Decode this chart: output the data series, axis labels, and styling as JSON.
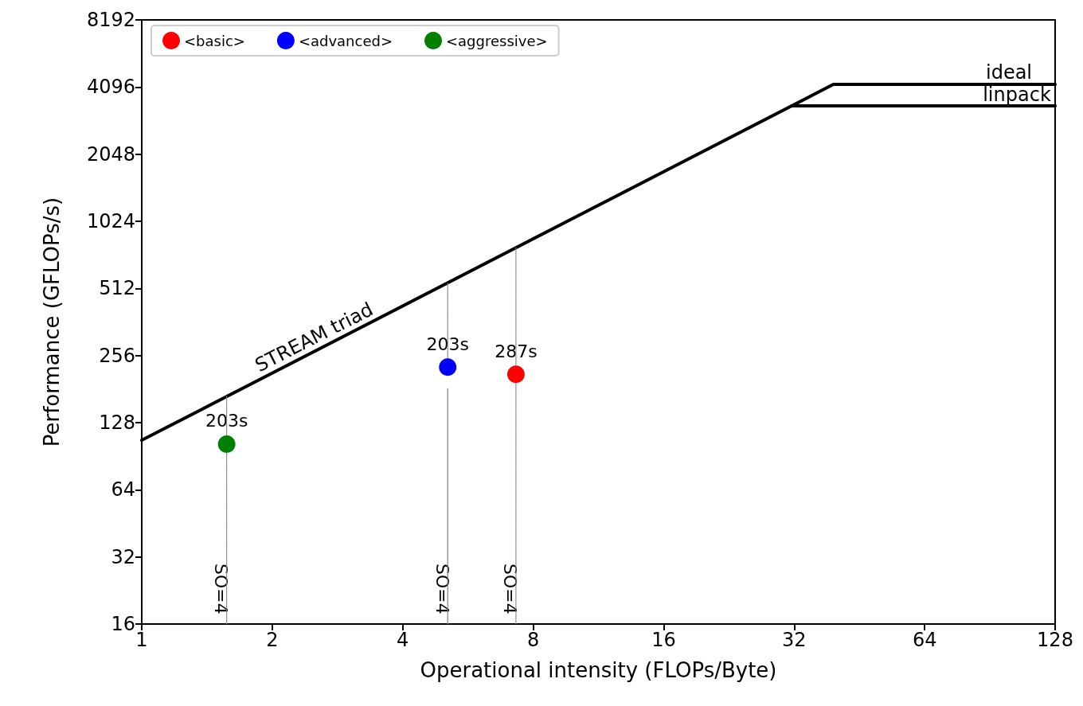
{
  "chart_data": {
    "type": "scatter",
    "xlabel": "Operational intensity (FLOPs/Byte)",
    "ylabel": "Performance (GFLOPs/s)",
    "log": "xy",
    "xlim": [
      1,
      128
    ],
    "xticks": [
      1,
      2,
      4,
      8,
      16,
      32,
      64,
      128
    ],
    "ylim": [
      16,
      8192
    ],
    "yticks": [
      16,
      32,
      64,
      128,
      256,
      512,
      1024,
      2048,
      4096,
      8192
    ],
    "grid": false,
    "legend": "top left",
    "marker": "circle",
    "series": [
      {
        "type": "line",
        "color": "#000000",
        "x": [
          1,
          39.4,
          128
        ],
        "values": [
          106.8,
          4208,
          4208
        ],
        "line_style": "solid",
        "marker": "none"
      },
      {
        "type": "line",
        "color": "#000000",
        "x": [
          31.6,
          128
        ],
        "values": [
          3375,
          3375
        ],
        "line_style": "solid",
        "marker": "none"
      },
      {
        "type": "line",
        "color": "#808080",
        "x": [
          1.57,
          1.57
        ],
        "values": [
          16,
          168
        ],
        "line_style": "dotted",
        "marker": "none"
      },
      {
        "type": "line",
        "color": "#808080",
        "x": [
          5.08,
          5.08
        ],
        "values": [
          248,
          543
        ],
        "line_style": "dotted",
        "marker": "none"
      },
      {
        "type": "line",
        "color": "#808080",
        "x": [
          5.08,
          5.08
        ],
        "values": [
          16,
          182
        ],
        "line_style": "solid",
        "marker": "none"
      },
      {
        "type": "line",
        "color": "#808080",
        "x": [
          7.3,
          7.3
        ],
        "values": [
          16,
          780
        ],
        "line_style": "dotted",
        "marker": "none"
      },
      {
        "name": "<basic>",
        "color": "#ff0000",
        "x": [
          7.3
        ],
        "values": [
          211
        ]
      },
      {
        "name": "<advanced>",
        "color": "#0000ff",
        "x": [
          5.08
        ],
        "values": [
          227
        ]
      },
      {
        "name": "<aggressive>",
        "color": "#008000",
        "x": [
          1.57
        ],
        "values": [
          102.6
        ]
      }
    ],
    "annotations": [
      "STREAM triad",
      "ideal",
      "linpack",
      {
        "text": "203s",
        "x": 1.57,
        "y": 102.6
      },
      {
        "text": "203s",
        "x": 5.08,
        "y": 227
      },
      {
        "text": "287s",
        "x": 7.3,
        "y": 211
      },
      {
        "text": "SO=4",
        "x": 1.57,
        "y": 23
      },
      {
        "text": "SO=4",
        "x": 5.08,
        "y": 23
      },
      {
        "text": "SO=4",
        "x": 7.3,
        "y": 23
      }
    ]
  }
}
